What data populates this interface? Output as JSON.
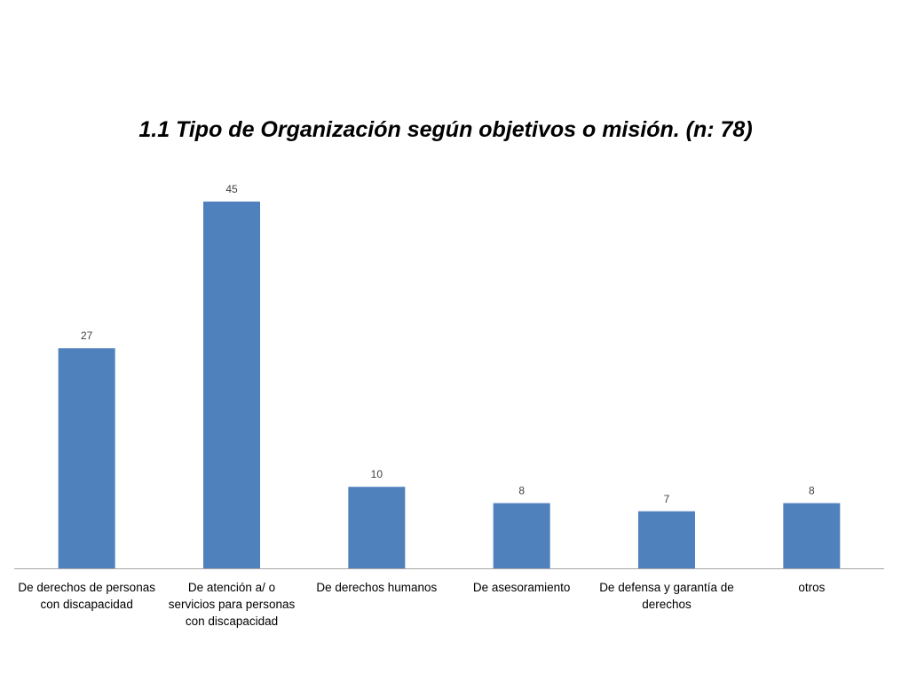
{
  "chart_data": {
    "type": "bar",
    "title": "1.1 Tipo de Organización según objetivos o misión. (n: 78)",
    "categories": [
      [
        "De derechos de personas",
        "con discapacidad"
      ],
      [
        "De atención a/ o",
        "servicios para personas",
        "con discapacidad"
      ],
      [
        "De derechos humanos"
      ],
      [
        "De asesoramiento"
      ],
      [
        "De defensa y garantía de",
        "derechos"
      ],
      [
        "otros"
      ]
    ],
    "values": [
      27,
      45,
      10,
      8,
      7,
      8
    ],
    "data_labels": [
      "27",
      "45",
      "10",
      "8",
      "7",
      "8"
    ],
    "xlabel": "",
    "ylabel": "",
    "ylim": [
      0,
      45
    ],
    "grid": false,
    "legend": "none",
    "bar_color": "#4F81BD",
    "axis_color": "#A6A6A6"
  }
}
